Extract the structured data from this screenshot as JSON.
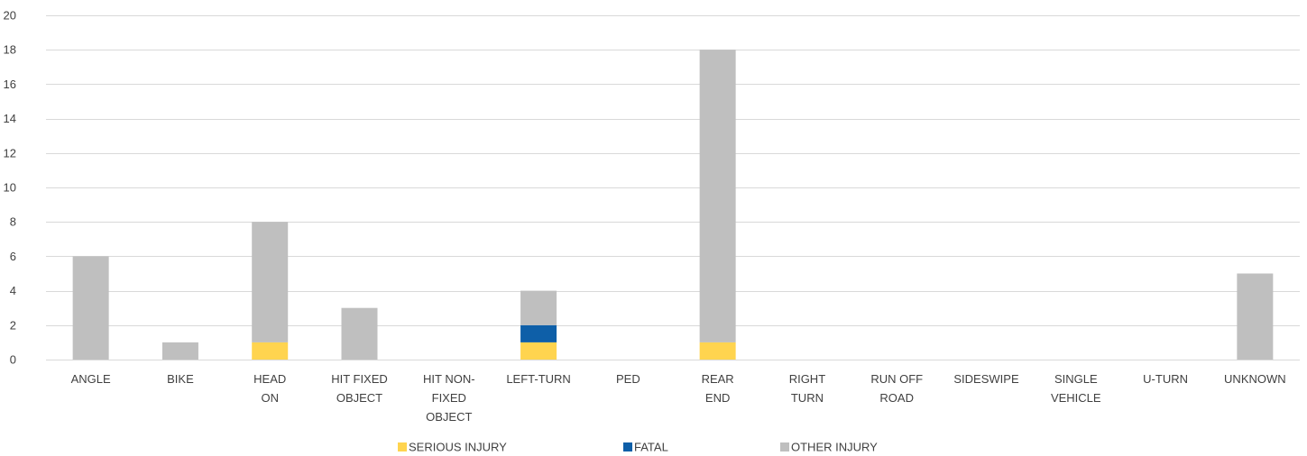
{
  "chart_data": {
    "type": "bar",
    "stacked": true,
    "categories": [
      "ANGLE",
      "BIKE",
      "HEAD ON",
      "HIT FIXED OBJECT",
      "HIT NON-FIXED OBJECT",
      "LEFT-TURN",
      "PED",
      "REAR END",
      "RIGHT TURN",
      "RUN OFF ROAD",
      "SIDESWIPE",
      "SINGLE VEHICLE",
      "U-TURN",
      "UNKNOWN"
    ],
    "category_lines": [
      [
        "ANGLE"
      ],
      [
        "BIKE"
      ],
      [
        "HEAD",
        "ON"
      ],
      [
        "HIT FIXED",
        "OBJECT"
      ],
      [
        "HIT NON-",
        "FIXED",
        "OBJECT"
      ],
      [
        "LEFT-TURN"
      ],
      [
        "PED"
      ],
      [
        "REAR",
        "END"
      ],
      [
        "RIGHT",
        "TURN"
      ],
      [
        "RUN OFF",
        "ROAD"
      ],
      [
        "SIDESWIPE"
      ],
      [
        "SINGLE",
        "VEHICLE"
      ],
      [
        "U-TURN"
      ],
      [
        "UNKNOWN"
      ]
    ],
    "series": [
      {
        "name": "SERIOUS INJURY",
        "color": "#FFD44F",
        "values": [
          0,
          0,
          1,
          0,
          0,
          1,
          0,
          1,
          0,
          0,
          0,
          0,
          0,
          0
        ]
      },
      {
        "name": "FATAL",
        "color": "#0E5FA8",
        "values": [
          0,
          0,
          0,
          0,
          0,
          1,
          0,
          0,
          0,
          0,
          0,
          0,
          0,
          0
        ]
      },
      {
        "name": "OTHER INJURY",
        "color": "#BFBFBF",
        "values": [
          6,
          1,
          7,
          3,
          0,
          2,
          0,
          17,
          0,
          0,
          0,
          0,
          0,
          5
        ]
      }
    ],
    "ylim": [
      0,
      20
    ],
    "yticks": [
      0,
      2,
      4,
      6,
      8,
      10,
      12,
      14,
      16,
      18,
      20
    ],
    "grid": true,
    "legend_position": "bottom",
    "title": "",
    "xlabel": "",
    "ylabel": ""
  }
}
